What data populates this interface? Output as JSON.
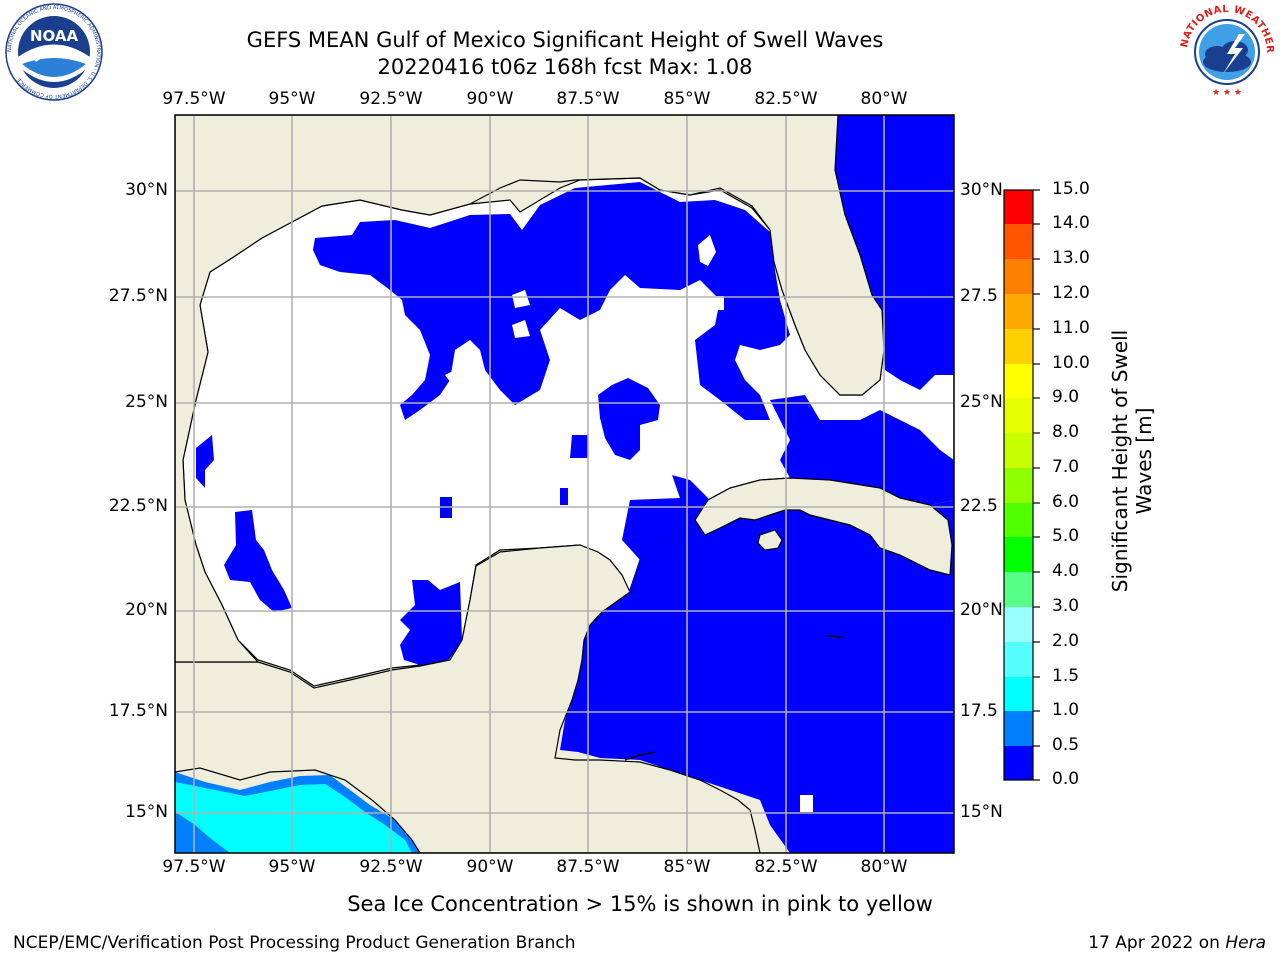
{
  "header": {
    "title_line1": "GEFS MEAN Gulf of Mexico Significant Height of Swell Waves",
    "title_line2": "20220416 t06z 168h fcst   Max: 1.08"
  },
  "logos": {
    "left": {
      "name": "noaa-logo",
      "text": "NOAA",
      "ring_text": "NATIONAL OCEANIC AND ATMOSPHERIC ADMINISTRATION · U.S. DEPARTMENT OF COMMERCE",
      "color": "#1a3f8f"
    },
    "right": {
      "name": "nws-logo",
      "ring_text": "NATIONAL WEATHER SERVICE",
      "color": "#e0201b"
    }
  },
  "map": {
    "lon_labels_top": [
      "97.5°W",
      "95°W",
      "92.5°W",
      "90°W",
      "87.5°W",
      "85°W",
      "82.5°W",
      "80°W"
    ],
    "lon_labels_bottom": [
      "97.5°W",
      "95°W",
      "92.5°W",
      "90°W",
      "87.5°W",
      "85°W",
      "82.5°W",
      "80°W"
    ],
    "lat_labels_left": [
      "30°N",
      "27.5°N",
      "25°N",
      "22.5°N",
      "20°N",
      "17.5°N",
      "15°N"
    ],
    "lat_labels_right": [
      "30°N",
      "27.5",
      "25°N",
      "22.5",
      "20°N",
      "17.5",
      "15°N"
    ],
    "colors": {
      "land": "#efeedc",
      "low_swell": "#0000ff",
      "mid_swell": "#00ffff",
      "light_swell": "#0080ff",
      "grid": "#b0b0b0"
    }
  },
  "colorbar": {
    "ticks": [
      "15.0",
      "14.0",
      "13.0",
      "12.0",
      "11.0",
      "10.0",
      "9.0",
      "8.0",
      "7.0",
      "6.0",
      "5.0",
      "4.0",
      "3.0",
      "2.0",
      "1.5",
      "1.0",
      "0.5",
      "0.0"
    ],
    "bands": [
      "#ff0000",
      "#ff2000",
      "#ff4800",
      "#ff7000",
      "#ff9000",
      "#ffb400",
      "#ffe000",
      "#ffff00",
      "#e0ff00",
      "#c0ff00",
      "#80ff00",
      "#40e000",
      "#00ff00",
      "#55ff80",
      "#99ffff",
      "#55ffff",
      "#00ffff",
      "#0080ff",
      "#0000ff"
    ],
    "title_line1": "Significant Height of Swell",
    "title_line2": "Waves [m]"
  },
  "note": "Sea Ice Concentration > 15% is shown in pink to yellow",
  "footer": {
    "left": "NCEP/EMC/Verification Post Processing Product Generation Branch",
    "date": "17 Apr 2022 on ",
    "host": "Hera"
  }
}
